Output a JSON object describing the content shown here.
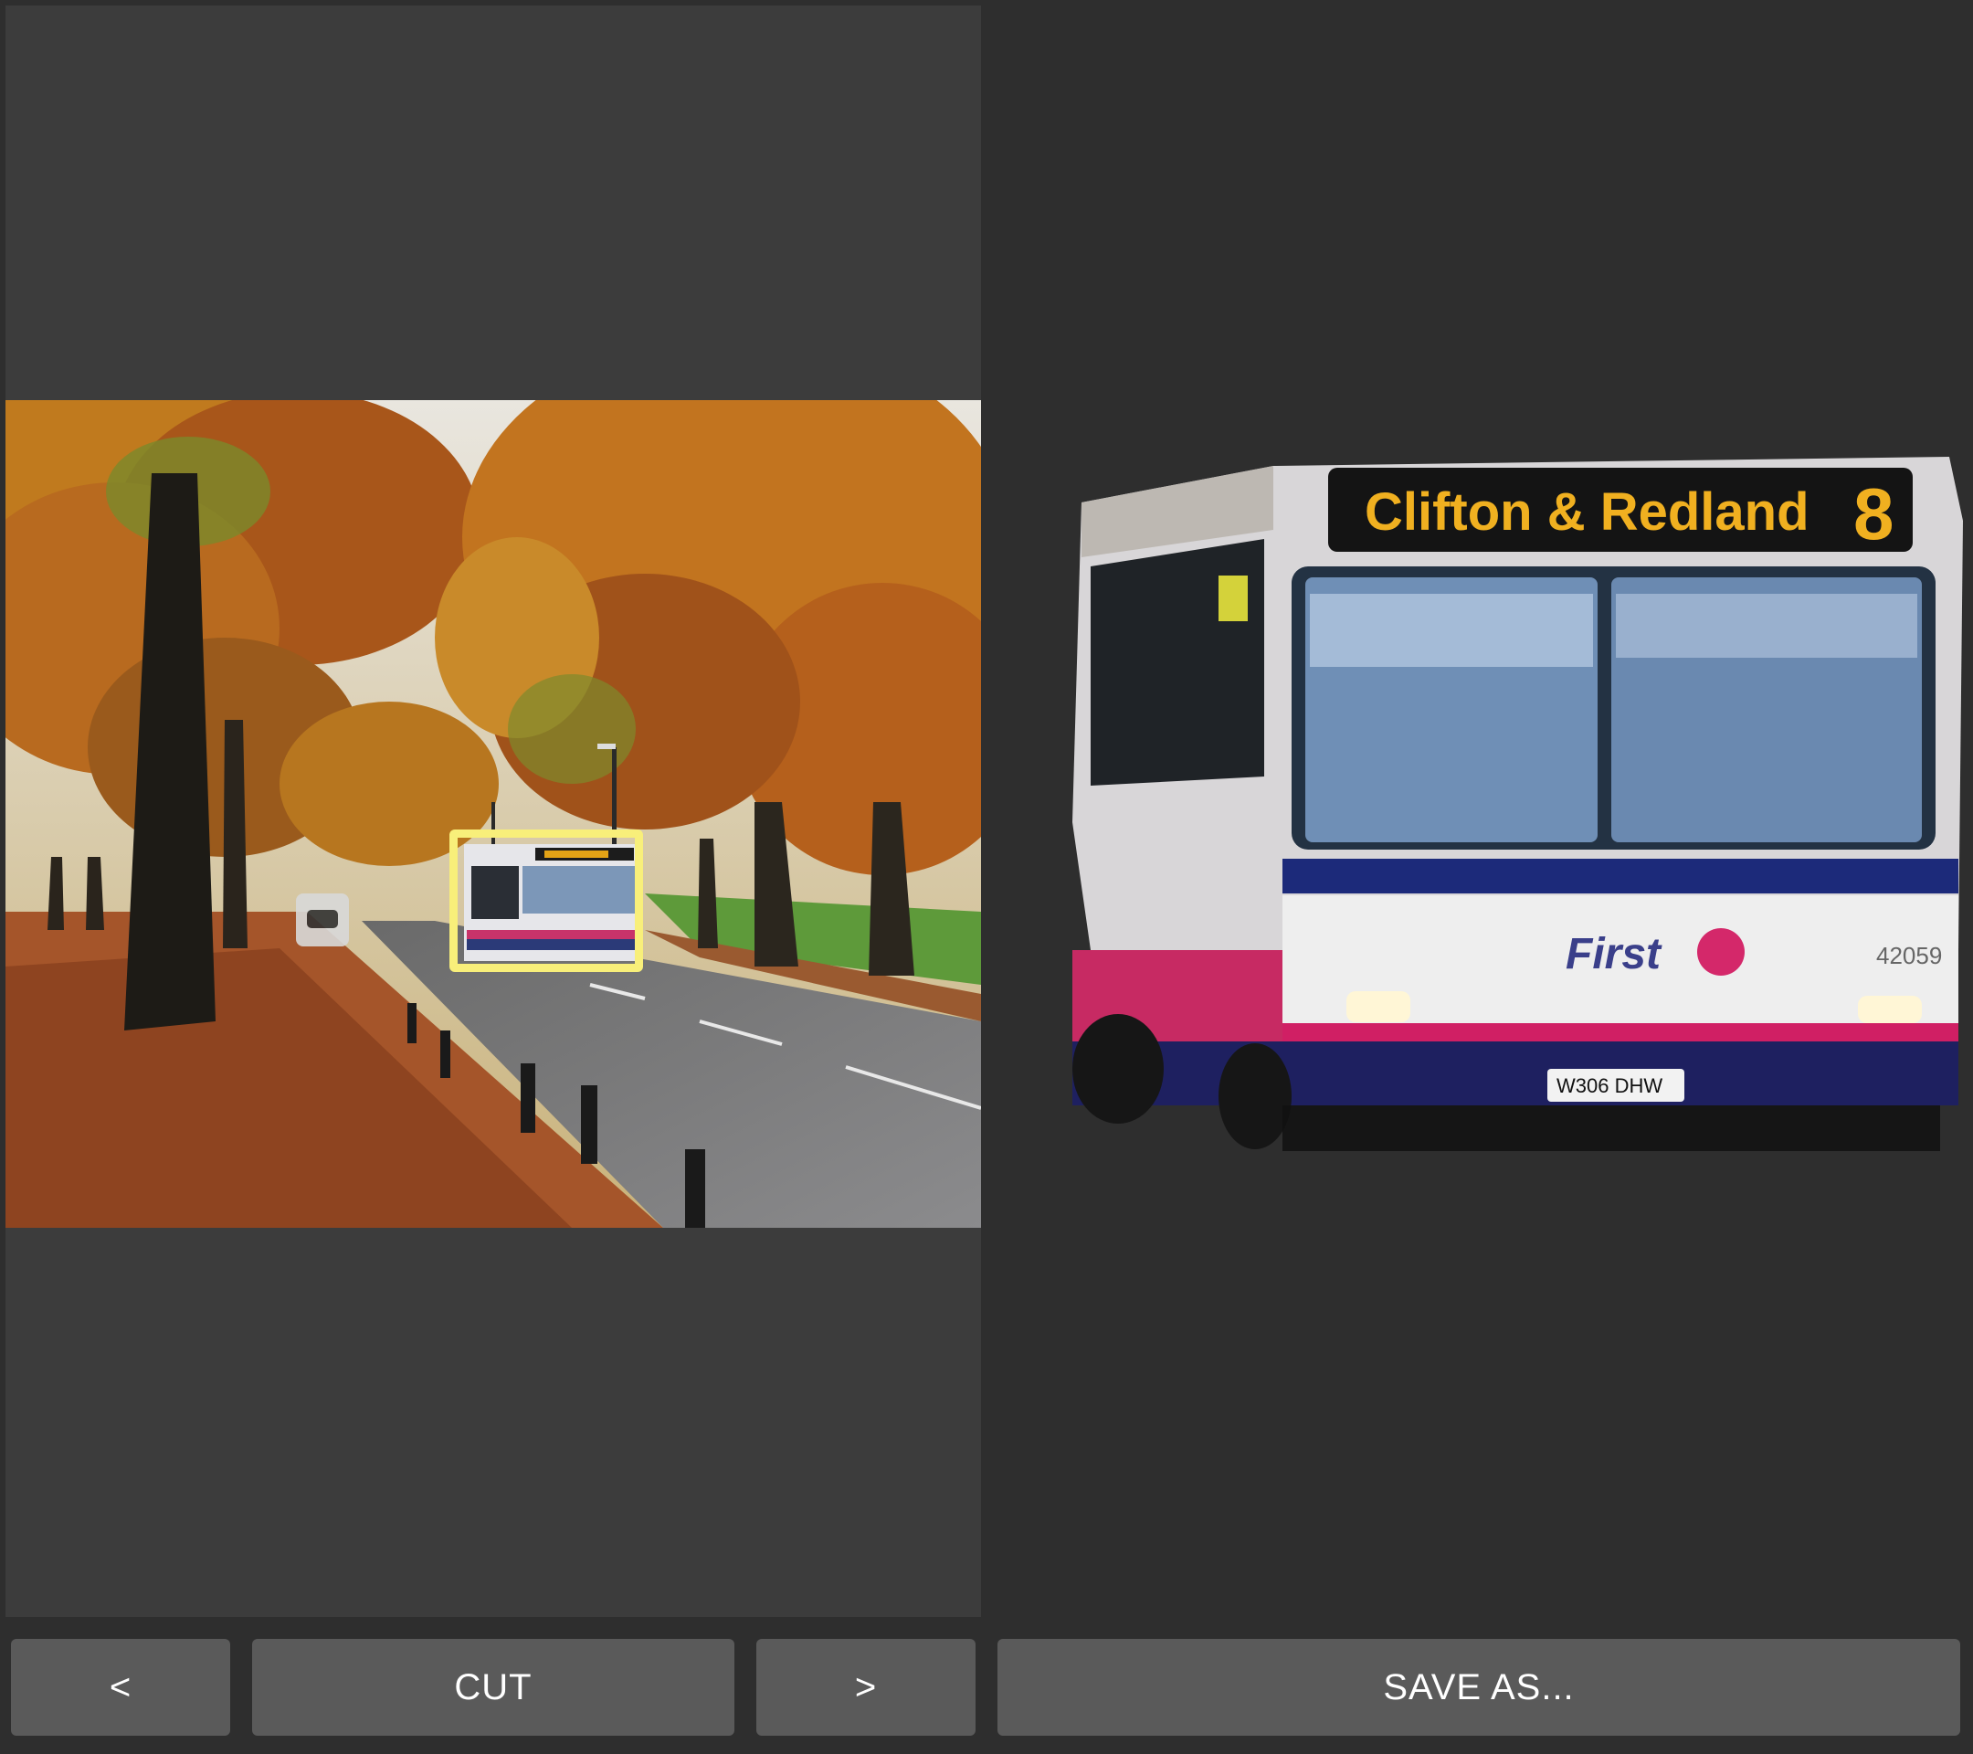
{
  "toolbar": {
    "prev_label": "<",
    "cut_label": "CUT",
    "next_label": ">",
    "save_label": "SAVE AS..."
  },
  "bus": {
    "destination": "Clifton & Redland",
    "route_number": "8",
    "operator_logo": "First",
    "fleet_number": "42059",
    "registration": "W306 DHW"
  },
  "colors": {
    "selection_highlight": "#f8ef7a",
    "button_bg": "#5a5a5a",
    "left_panel_bg": "#3c3c3c",
    "app_bg": "#2e2e2e"
  }
}
